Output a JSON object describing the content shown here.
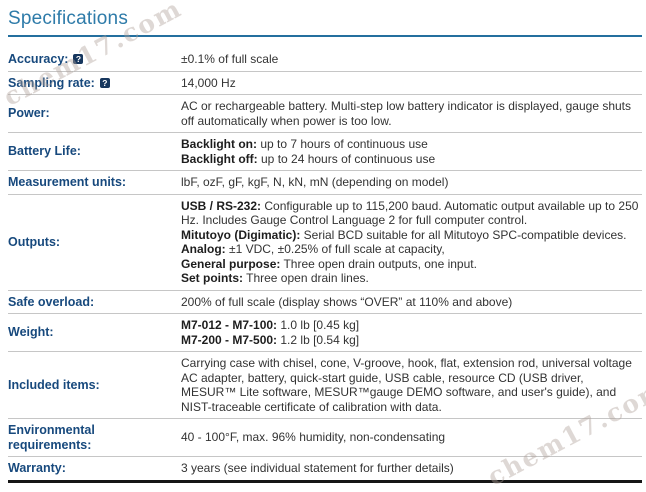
{
  "page": {
    "title": "Specifications"
  },
  "watermark": {
    "text": "chem17.com"
  },
  "table": {
    "help_glyph": "?",
    "rows": [
      {
        "label": "Accuracy:",
        "help": true,
        "paragraphs": [
          {
            "bold": "",
            "text": "±0.1% of full scale"
          }
        ]
      },
      {
        "label": "Sampling rate:",
        "help": true,
        "paragraphs": [
          {
            "bold": "",
            "text": "14,000 Hz"
          }
        ]
      },
      {
        "label": "Power:",
        "help": false,
        "paragraphs": [
          {
            "bold": "",
            "text": "AC or rechargeable battery. Multi-step low battery indicator is displayed, gauge shuts off automatically when power is too low."
          }
        ]
      },
      {
        "label": "Battery Life:",
        "help": false,
        "paragraphs": [
          {
            "bold": "Backlight on:",
            "text": " up to 7 hours of continuous use"
          },
          {
            "bold": "Backlight off:",
            "text": " up to 24 hours of continuous use"
          }
        ]
      },
      {
        "label": "Measurement units:",
        "help": false,
        "paragraphs": [
          {
            "bold": "",
            "text": "lbF, ozF, gF, kgF, N, kN, mN (depending on model)"
          }
        ]
      },
      {
        "label": "Outputs:",
        "help": false,
        "paragraphs": [
          {
            "bold": "USB / RS-232:",
            "text": " Configurable up to 115,200 baud. Automatic output available up to 250 Hz. Includes Gauge Control Language 2 for full computer control."
          },
          {
            "bold": "Mitutoyo (Digimatic):",
            "text": " Serial BCD suitable for all Mitutoyo SPC-compatible devices."
          },
          {
            "bold": "Analog:",
            "text": " ±1 VDC, ±0.25% of full scale at capacity,"
          },
          {
            "bold": "General purpose:",
            "text": " Three open drain outputs, one input."
          },
          {
            "bold": "Set points:",
            "text": " Three open drain lines."
          }
        ]
      },
      {
        "label": "Safe overload:",
        "help": false,
        "paragraphs": [
          {
            "bold": "",
            "text": "200% of full scale (display shows “OVER” at 110% and above)"
          }
        ]
      },
      {
        "label": "Weight:",
        "help": false,
        "paragraphs": [
          {
            "bold": "M7-012 - M7-100:",
            "text": " 1.0 lb [0.45 kg]"
          },
          {
            "bold": "M7-200 - M7-500:",
            "text": " 1.2 lb [0.54 kg]"
          }
        ]
      },
      {
        "label": "Included items:",
        "help": false,
        "paragraphs": [
          {
            "bold": "",
            "text": "Carrying case with chisel, cone, V-groove, hook, flat, extension rod, universal voltage AC adapter, battery, quick-start guide, USB cable, resource CD (USB driver, MESUR™ Lite software, MESUR™gauge DEMO software, and user's guide), and NIST-traceable certificate of calibration with data."
          }
        ]
      },
      {
        "label": "Environmental requirements:",
        "help": false,
        "paragraphs": [
          {
            "bold": "",
            "text": "40 - 100°F, max. 96% humidity, non-condensating"
          }
        ]
      },
      {
        "label": "Warranty:",
        "help": false,
        "paragraphs": [
          {
            "bold": "",
            "text": "3 years (see individual statement for further details)"
          }
        ]
      }
    ]
  }
}
